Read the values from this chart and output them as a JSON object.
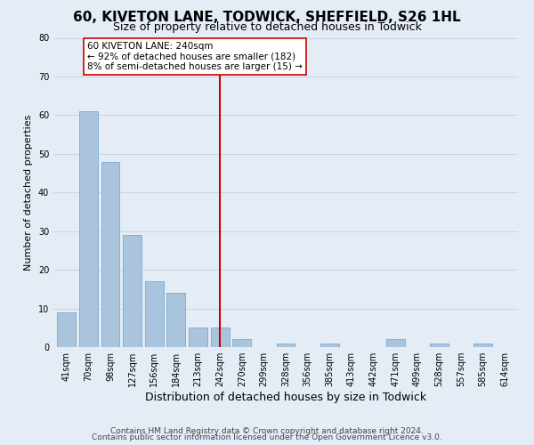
{
  "title": "60, KIVETON LANE, TODWICK, SHEFFIELD, S26 1HL",
  "subtitle": "Size of property relative to detached houses in Todwick",
  "xlabel": "Distribution of detached houses by size in Todwick",
  "ylabel": "Number of detached properties",
  "bar_labels": [
    "41sqm",
    "70sqm",
    "98sqm",
    "127sqm",
    "156sqm",
    "184sqm",
    "213sqm",
    "242sqm",
    "270sqm",
    "299sqm",
    "328sqm",
    "356sqm",
    "385sqm",
    "413sqm",
    "442sqm",
    "471sqm",
    "499sqm",
    "528sqm",
    "557sqm",
    "585sqm",
    "614sqm"
  ],
  "bar_values": [
    9,
    61,
    48,
    29,
    17,
    14,
    5,
    5,
    2,
    0,
    1,
    0,
    1,
    0,
    0,
    2,
    0,
    1,
    0,
    1,
    0
  ],
  "bar_color": "#aac4de",
  "bar_edge_color": "#7aaacb",
  "vline_x_index": 7,
  "vline_color": "#cc0000",
  "annotation_title": "60 KIVETON LANE: 240sqm",
  "annotation_line1": "← 92% of detached houses are smaller (182)",
  "annotation_line2": "8% of semi-detached houses are larger (15) →",
  "annotation_box_facecolor": "#ffffff",
  "annotation_box_edgecolor": "#cc0000",
  "ylim": [
    0,
    80
  ],
  "yticks": [
    0,
    10,
    20,
    30,
    40,
    50,
    60,
    70,
    80
  ],
  "grid_color": "#c8d4e8",
  "bg_color": "#e4ecf6",
  "footnote1": "Contains HM Land Registry data © Crown copyright and database right 2024.",
  "footnote2": "Contains public sector information licensed under the Open Government Licence v3.0.",
  "title_fontsize": 11,
  "subtitle_fontsize": 9,
  "xlabel_fontsize": 9,
  "ylabel_fontsize": 8,
  "tick_fontsize": 7,
  "annotation_fontsize": 7.5,
  "footnote_fontsize": 6.5
}
